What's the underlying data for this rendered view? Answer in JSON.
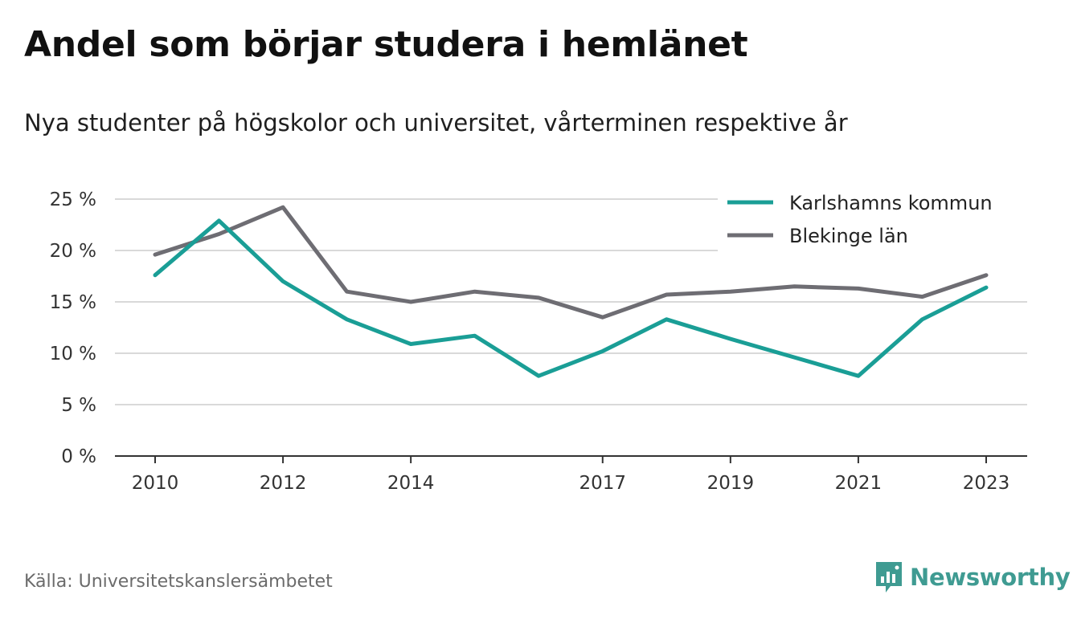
{
  "header": {
    "title": "Andel som börjar studera i hemlänet",
    "subtitle": "Nya studenter på högskolor och universitet, vårterminen respektive år"
  },
  "footer": {
    "source": "Källa: Universitetskanslersämbetet",
    "brand": "Newsworthy"
  },
  "colors": {
    "karlshamn": "#1a9e96",
    "blekinge": "#6e6d73",
    "grid": "#d9d9d9",
    "axis": "#333333",
    "brand": "#3f9b92"
  },
  "chart_data": {
    "type": "line",
    "x": [
      2010,
      2011,
      2012,
      2013,
      2014,
      2015,
      2016,
      2017,
      2018,
      2019,
      2020,
      2021,
      2022,
      2023
    ],
    "x_tick_labels": [
      "2010",
      "2012",
      "2014",
      "2017",
      "2019",
      "2021",
      "2023"
    ],
    "y_tick_labels": [
      "0 %",
      "5 %",
      "10 %",
      "15 %",
      "20 %",
      "25 %"
    ],
    "y_ticks": [
      0,
      5,
      10,
      15,
      20,
      25
    ],
    "ylim": [
      0,
      25
    ],
    "grid": true,
    "legend_position": "top-right",
    "series": [
      {
        "name": "Karlshamns kommun",
        "color_key": "karlshamn",
        "values": [
          17.6,
          22.9,
          17.0,
          13.3,
          10.9,
          11.7,
          7.8,
          10.2,
          13.3,
          11.4,
          9.6,
          7.8,
          13.3,
          16.4
        ]
      },
      {
        "name": "Blekinge län",
        "color_key": "blekinge",
        "values": [
          19.6,
          21.6,
          24.2,
          16.0,
          15.0,
          16.0,
          15.4,
          13.5,
          15.7,
          16.0,
          16.5,
          16.3,
          15.5,
          17.6
        ]
      }
    ]
  }
}
